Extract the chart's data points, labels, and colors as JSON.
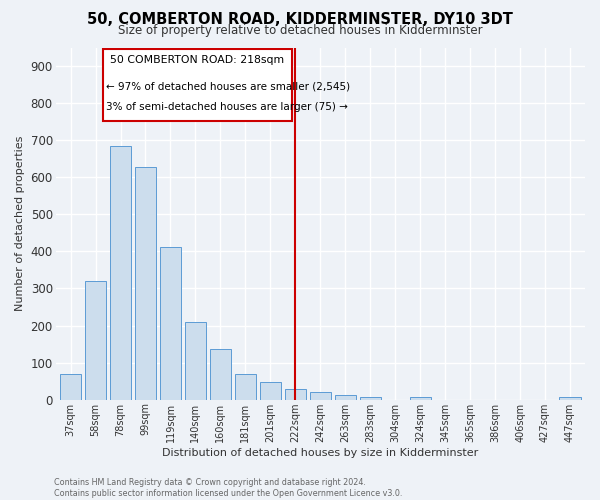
{
  "title": "50, COMBERTON ROAD, KIDDERMINSTER, DY10 3DT",
  "subtitle": "Size of property relative to detached houses in Kidderminster",
  "xlabel": "Distribution of detached houses by size in Kidderminster",
  "ylabel": "Number of detached properties",
  "categories": [
    "37sqm",
    "58sqm",
    "78sqm",
    "99sqm",
    "119sqm",
    "140sqm",
    "160sqm",
    "181sqm",
    "201sqm",
    "222sqm",
    "242sqm",
    "263sqm",
    "283sqm",
    "304sqm",
    "324sqm",
    "345sqm",
    "365sqm",
    "386sqm",
    "406sqm",
    "427sqm",
    "447sqm"
  ],
  "values": [
    70,
    320,
    685,
    628,
    413,
    210,
    137,
    70,
    48,
    30,
    22,
    13,
    7,
    0,
    8,
    0,
    0,
    0,
    0,
    0,
    8
  ],
  "bar_color": "#ccdded",
  "bar_edge_color": "#5b9bd5",
  "vline_x_index": 9,
  "annotation_line1": "50 COMBERTON ROAD: 218sqm",
  "annotation_line2": "← 97% of detached houses are smaller (2,545)",
  "annotation_line3": "3% of semi-detached houses are larger (75) →",
  "annotation_box_color": "#cc0000",
  "ylim": [
    0,
    950
  ],
  "yticks": [
    0,
    100,
    200,
    300,
    400,
    500,
    600,
    700,
    800,
    900
  ],
  "bg_color": "#eef2f7",
  "grid_color": "#ffffff",
  "footer_line1": "Contains HM Land Registry data © Crown copyright and database right 2024.",
  "footer_line2": "Contains public sector information licensed under the Open Government Licence v3.0."
}
